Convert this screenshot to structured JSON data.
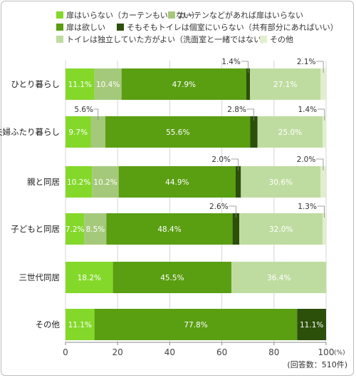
{
  "chart_data": {
    "type": "bar",
    "orientation": "horizontal",
    "stacked": true,
    "series": [
      {
        "name": "扉はいらない（カーテンもいらない）",
        "color": "#84d82a",
        "values": [
          11.1,
          9.7,
          10.2,
          7.2,
          18.2,
          11.1
        ]
      },
      {
        "name": "カーテンなどがあれば扉はいらない",
        "color": "#a5c97b",
        "values": [
          10.4,
          5.6,
          10.2,
          8.5,
          0,
          0
        ]
      },
      {
        "name": "扉は欲しい",
        "color": "#5a9e12",
        "values": [
          47.9,
          55.6,
          44.9,
          48.4,
          45.5,
          77.8
        ]
      },
      {
        "name": "そもそもトイレは個室にいらない（共有部分にあればいい）",
        "color": "#2c4f0a",
        "values": [
          1.4,
          2.8,
          2.0,
          2.6,
          0,
          11.1
        ]
      },
      {
        "name": "トイレは独立していた方がよい（洗面室と一緒ではない）",
        "color": "#bfdca0",
        "values": [
          27.1,
          25.0,
          30.6,
          32.0,
          36.4,
          0
        ]
      },
      {
        "name": "その他",
        "color": "#e1efcf",
        "values": [
          2.1,
          1.4,
          2.0,
          1.3,
          0,
          0
        ]
      }
    ],
    "categories": [
      "ひとり暮らし",
      "夫婦ふたり暮らし",
      "親と同居",
      "子どもと同居",
      "三世代同居",
      "その他"
    ],
    "labels": [
      [
        "11.1%",
        "10.4%",
        "47.9%",
        "1.4%",
        "27.1%",
        "2.1%"
      ],
      [
        "9.7%",
        "5.6%",
        "55.6%",
        "2.8%",
        "25.0%",
        "1.4%"
      ],
      [
        "10.2%",
        "10.2%",
        "44.9%",
        "2.0%",
        "30.6%",
        "2.0%"
      ],
      [
        "7.2%",
        "8.5%",
        "48.4%",
        "2.6%",
        "32.0%",
        "1.3%"
      ],
      [
        "18.2%",
        "",
        "45.5%",
        "",
        "36.4%",
        ""
      ],
      [
        "11.1%",
        "",
        "77.8%",
        "11.1%",
        "",
        ""
      ]
    ],
    "xlim": [
      0,
      100
    ],
    "xticks": [
      "0",
      "20",
      "40",
      "60",
      "80",
      "100"
    ],
    "x_unit": "(%)",
    "note": "(回答数：510件)",
    "grid": true,
    "legend": "top"
  }
}
